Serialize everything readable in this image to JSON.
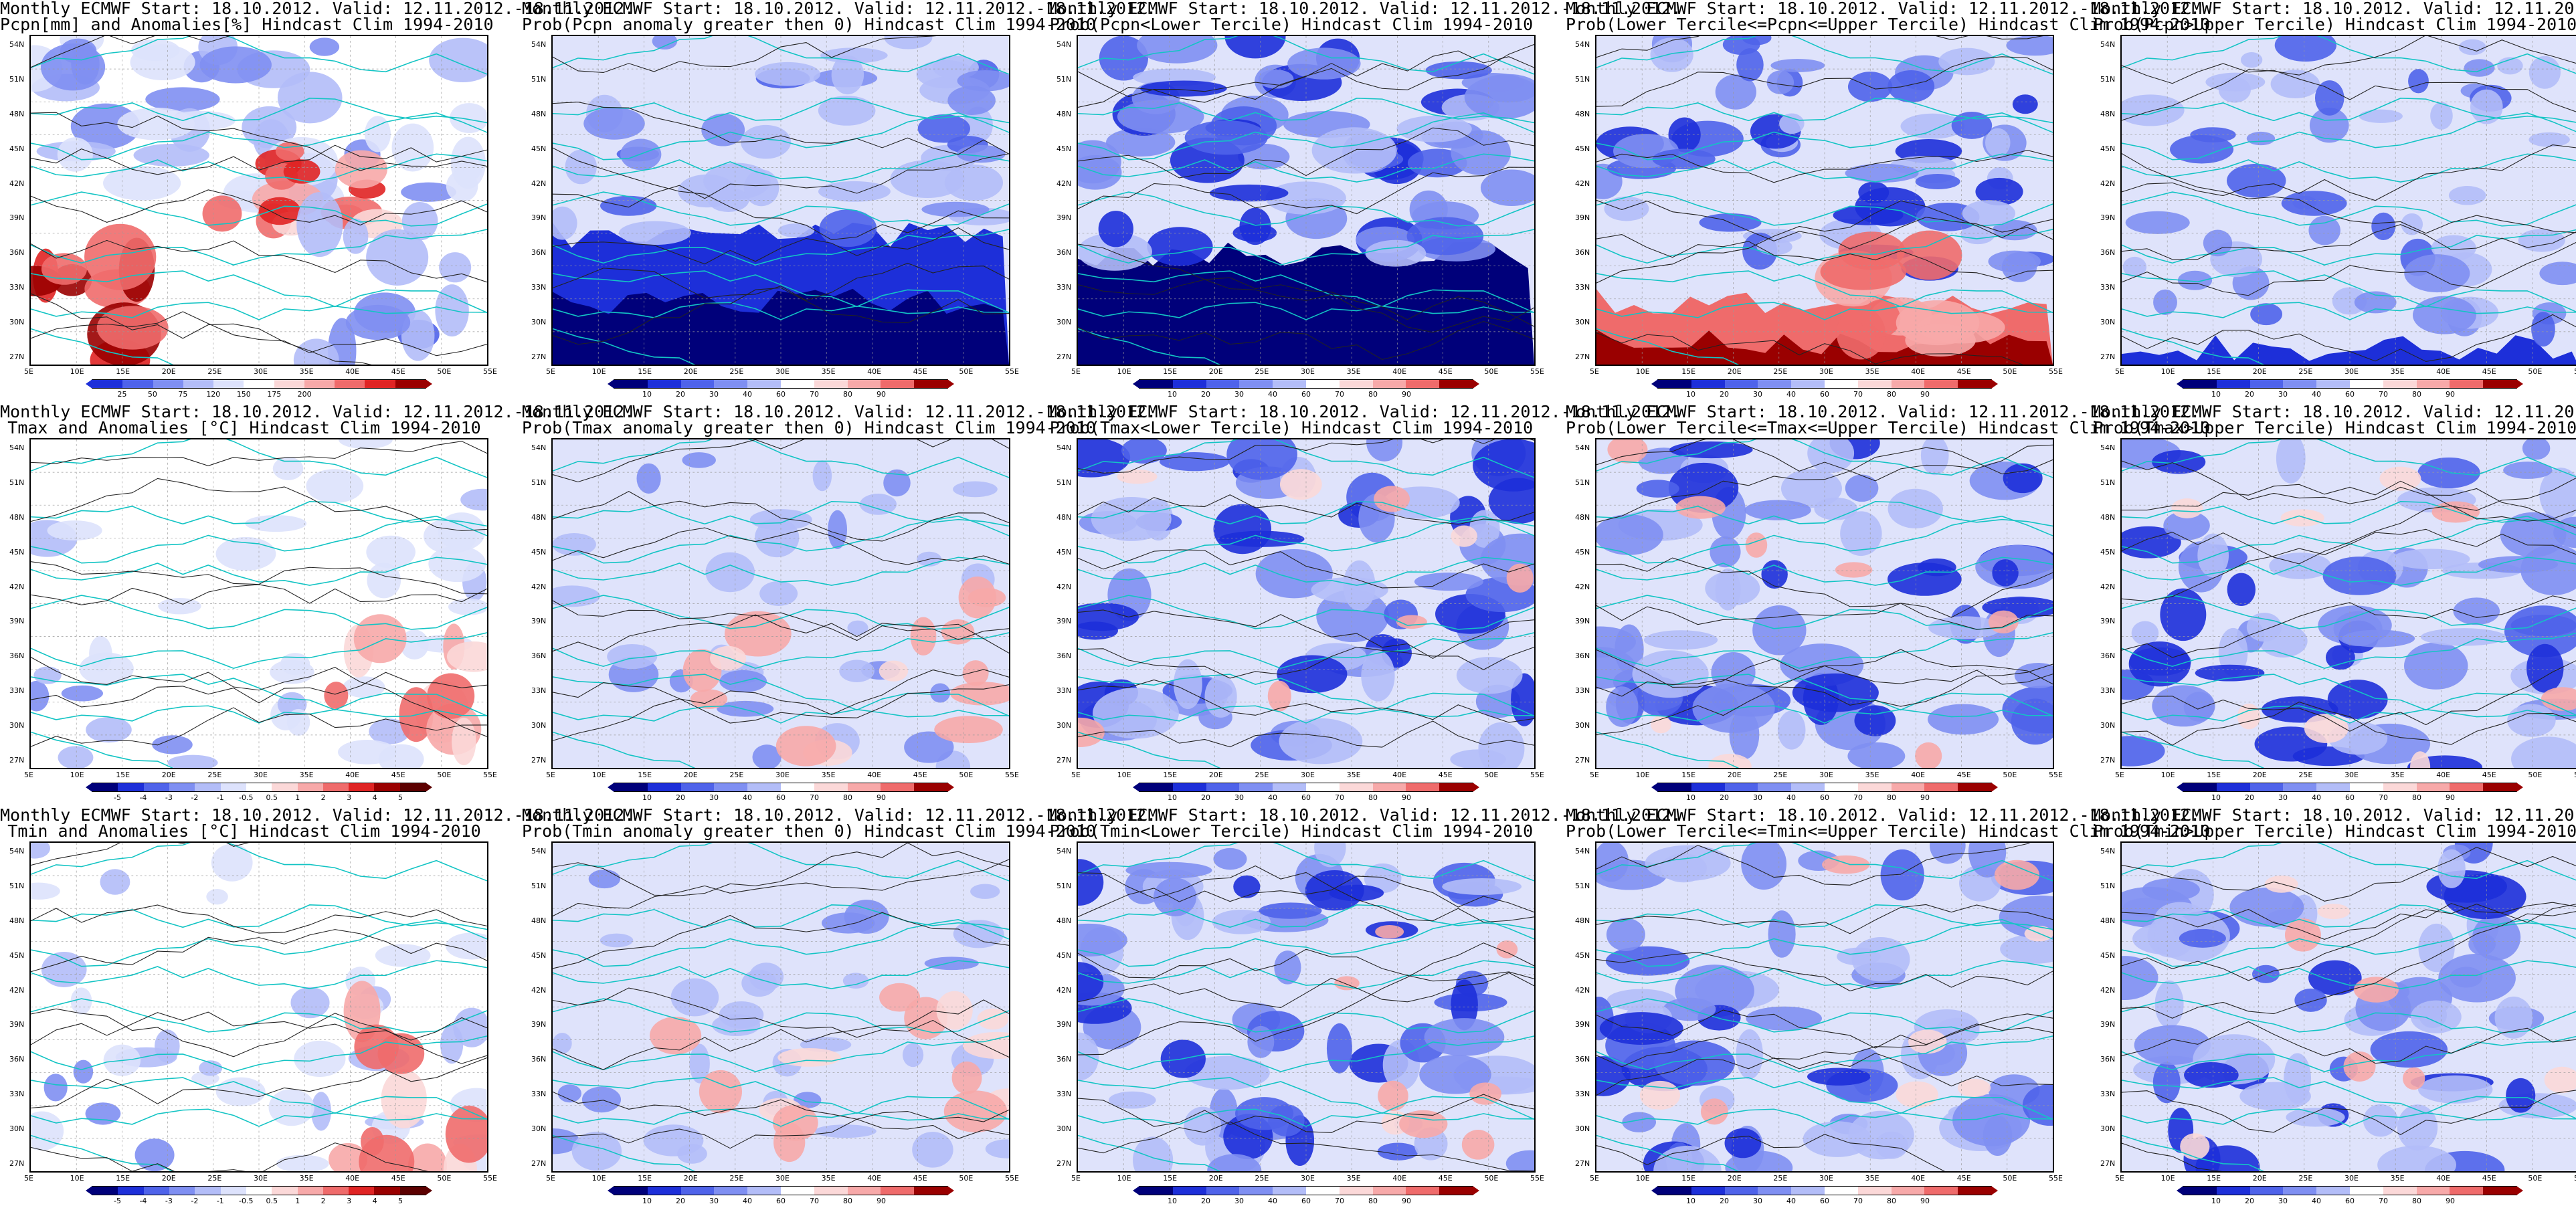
{
  "map": {
    "lat_labels": [
      "54N",
      "51N",
      "48N",
      "45N",
      "42N",
      "39N",
      "36N",
      "33N",
      "30N",
      "27N"
    ],
    "lon_labels": [
      "5E",
      "10E",
      "15E",
      "20E",
      "25E",
      "30E",
      "35E",
      "40E",
      "45E",
      "50E",
      "55E"
    ]
  },
  "scales": {
    "pcpn_anom": {
      "labels": [
        "25",
        "50",
        "75",
        "120",
        "150",
        "175",
        "200"
      ],
      "colors": [
        "#1d2fd9",
        "#4f63ea",
        "#7f8ff2",
        "#b3bdf8",
        "#dde2fc",
        "#ffffff",
        "#fbd8d8",
        "#f7a9a9",
        "#ef6b6b",
        "#e02424",
        "#9a0000"
      ]
    },
    "temp_anom": {
      "labels": [
        "-5",
        "-4",
        "-3",
        "-2",
        "-1",
        "-0.5",
        "0.5",
        "1",
        "2",
        "3",
        "4",
        "5"
      ],
      "colors": [
        "#00007a",
        "#1d2fd9",
        "#4f63ea",
        "#7f8ff2",
        "#b3bdf8",
        "#dde2fc",
        "#ffffff",
        "#fbd8d8",
        "#f7a9a9",
        "#ef6b6b",
        "#e02424",
        "#9a0000",
        "#5c0000"
      ]
    },
    "tmax_anom": {
      "labels": [
        "-5",
        "-4",
        "-3",
        "-2",
        "-1",
        "-0.5",
        "0.5",
        "1",
        "2",
        "3",
        "4",
        "5"
      ],
      "colors": [
        "#00007a",
        "#1d2fd9",
        "#4f63ea",
        "#7f8ff2",
        "#b3bdf8",
        "#dde2fc",
        "#ffffff",
        "#fbd8d8",
        "#f7a9a9",
        "#ef6b6b",
        "#e02424",
        "#9a0000",
        "#5c0000"
      ]
    },
    "prob": {
      "labels": [
        "10",
        "20",
        "30",
        "40",
        "60",
        "70",
        "80",
        "90"
      ],
      "colors": [
        "#00007a",
        "#1d2fd9",
        "#4f63ea",
        "#7f8ff2",
        "#b3bdf8",
        "#ffffff",
        "#fbd8d8",
        "#f7a9a9",
        "#ef6b6b",
        "#9a0000"
      ]
    }
  },
  "panels": [
    {
      "title1": "Monthly ECMWF Start: 18.10.2012. Valid: 12.11.2012.-18.11.2012.",
      "title2": "Pcpn[mm] and Anomalies[%] Hindcast Clim 1994-2010",
      "scale": "pcpn_anom",
      "pattern": "pcpn_anom",
      "has_colorbar": true
    },
    {
      "title1": "Monthly ECMWF Start: 18.10.2012. Valid: 12.11.2012.-18.11.2012.",
      "title2": "Prob(Pcpn anomaly greater then 0) Hindcast Clim 1994-2010",
      "scale": "prob",
      "pattern": "pcpn_pos",
      "has_colorbar": true
    },
    {
      "title1": "Monthly ECMWF Start: 18.10.2012. Valid: 12.11.2012.-18.11.2012.",
      "title2": "Prob(Pcpn<Lower Tercile) Hindcast Clim 1994-2010",
      "scale": "prob",
      "pattern": "pcpn_lower",
      "has_colorbar": true
    },
    {
      "title1": "Monthly ECMWF Start: 18.10.2012. Valid: 12.11.2012.-18.11.2012.",
      "title2": "Prob(Lower Tercile<=Pcpn<=Upper Tercile) Hindcast Clim 1994-2010",
      "scale": "prob",
      "pattern": "pcpn_mid",
      "has_colorbar": true
    },
    {
      "title1": "Monthly ECMWF Start: 18.10.2012. Valid: 12.11.2012.-18.11.2012.",
      "title2": "Prob(Pcpn>Upper Tercile) Hindcast Clim 1994-2010",
      "scale": "prob",
      "pattern": "pcpn_upper",
      "has_colorbar": true
    },
    {
      "title1": "Monthly ECMWF Start: 18.10.2012. Valid: 12.11.2012.-18.11.2012.",
      "title2": "Tmax and Anomalies [°C] Hindcast Clim 1994-2010",
      "scale": "tmax_anom",
      "pattern": "tmax_anom",
      "has_colorbar": true
    },
    {
      "title1": "Monthly ECMWF Start: 18.10.2012. Valid: 12.11.2012.-18.11.2012.",
      "title2": "Prob(Tmax anomaly greater then 0) Hindcast Clim 1994-2010",
      "scale": "prob",
      "pattern": "tmax_pos",
      "has_colorbar": true
    },
    {
      "title1": "Monthly ECMWF Start: 18.10.2012. Valid: 12.11.2012.-18.11.2012.",
      "title2": "Prob(Tmax<Lower Tercile) Hindcast Clim 1994-2010",
      "scale": "prob",
      "pattern": "tmax_lower",
      "has_colorbar": true
    },
    {
      "title1": "Monthly ECMWF Start: 18.10.2012. Valid: 12.11.2012.-18.11.2012.",
      "title2": "Prob(Lower Tercile<=Tmax<=Upper Tercile) Hindcast Clim 1994-2010",
      "scale": "prob",
      "pattern": "tmax_mid",
      "has_colorbar": true
    },
    {
      "title1": "Monthly ECMWF Start: 18.10.2012. Valid: 12.11.2012.-18.11.2012.",
      "title2": "Prob(Tmax>Upper Tercile) Hindcast Clim 1994-2010",
      "scale": "prob",
      "pattern": "tmax_upper",
      "has_colorbar": true
    },
    {
      "title1": "Monthly ECMWF Start: 18.10.2012. Valid: 12.11.2012.-18.11.2012.",
      "title2": "Tmin and Anomalies [°C] Hindcast Clim 1994-2010",
      "scale": "temp_anom",
      "pattern": "tmin_anom",
      "has_colorbar": true
    },
    {
      "title1": "Monthly ECMWF Start: 18.10.2012. Valid: 12.11.2012.-18.11.2012.",
      "title2": "Prob(Tmin anomaly greater then 0) Hindcast Clim 1994-2010",
      "scale": "prob",
      "pattern": "tmin_pos",
      "has_colorbar": true
    },
    {
      "title1": "Monthly ECMWF Start: 18.10.2012. Valid: 12.11.2012.-18.11.2012.",
      "title2": "Prob(Tmin<Lower Tercile) Hindcast Clim 1994-2010",
      "scale": "prob",
      "pattern": "tmin_lower",
      "has_colorbar": true
    },
    {
      "title1": "Monthly ECMWF Start: 18.10.2012. Valid: 12.11.2012.-18.11.2012.",
      "title2": "Prob(Lower Tercile<=Tmin<=Upper Tercile) Hindcast Clim 1994-2010",
      "scale": "prob",
      "pattern": "tmin_mid",
      "has_colorbar": true
    },
    {
      "title1": "Monthly ECMWF Start: 18.10.2012. Valid: 12.11.2012.-18.11.2012.",
      "title2": "Prob(Tmin>Upper Tercile) Hindcast Clim 1994-2010",
      "scale": "prob",
      "pattern": "tmin_upper",
      "has_colorbar": true
    }
  ]
}
